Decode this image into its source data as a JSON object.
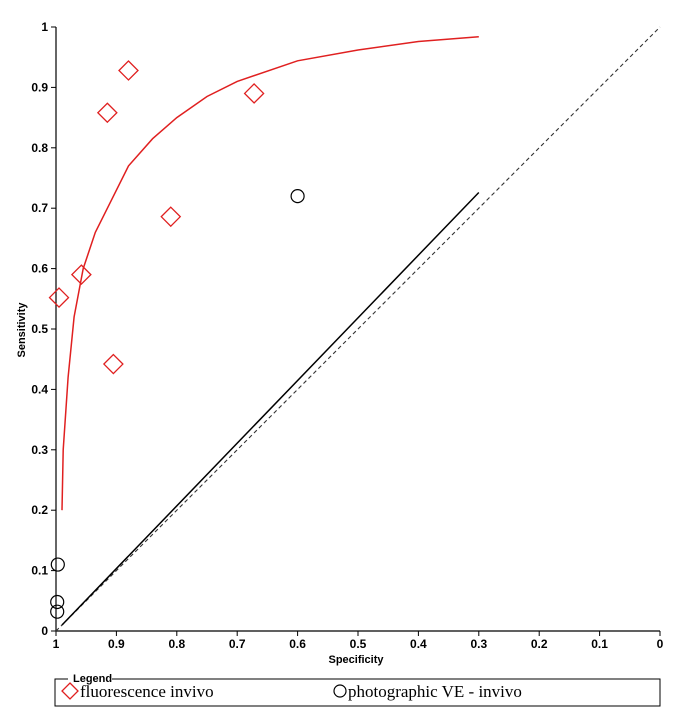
{
  "chart_data": {
    "type": "scatter",
    "xlabel": "Specificity",
    "ylabel": "Sensitivity",
    "xlim": [
      1,
      0
    ],
    "ylim": [
      0,
      1
    ],
    "x_reversed": true,
    "x_ticks": [
      {
        "value": 1,
        "label": "1"
      },
      {
        "value": 0.9,
        "label": "0.9"
      },
      {
        "value": 0.8,
        "label": "0.8"
      },
      {
        "value": 0.7,
        "label": "0.7"
      },
      {
        "value": 0.6,
        "label": "0.6"
      },
      {
        "value": 0.5,
        "label": "0.5"
      },
      {
        "value": 0.4,
        "label": "0.4"
      },
      {
        "value": 0.3,
        "label": "0.3"
      },
      {
        "value": 0.2,
        "label": "0.2"
      },
      {
        "value": 0.1,
        "label": "0.1"
      },
      {
        "value": 0,
        "label": "0"
      }
    ],
    "y_ticks": [
      {
        "value": 0,
        "label": "0"
      },
      {
        "value": 0.1,
        "label": "0.1"
      },
      {
        "value": 0.2,
        "label": "0.2"
      },
      {
        "value": 0.3,
        "label": "0.3"
      },
      {
        "value": 0.4,
        "label": "0.4"
      },
      {
        "value": 0.5,
        "label": "0.5"
      },
      {
        "value": 0.6,
        "label": "0.6"
      },
      {
        "value": 0.7,
        "label": "0.7"
      },
      {
        "value": 0.8,
        "label": "0.8"
      },
      {
        "value": 0.9,
        "label": "0.9"
      },
      {
        "value": 1,
        "label": "1"
      }
    ],
    "grid": false,
    "legend": {
      "title": "Legend",
      "placement": "bottom"
    },
    "series": [
      {
        "name": "fluorescence invivo",
        "marker": "diamond",
        "color": "#e02020",
        "points": [
          {
            "x": 0.88,
            "y": 0.928
          },
          {
            "x": 0.915,
            "y": 0.858
          },
          {
            "x": 0.672,
            "y": 0.89
          },
          {
            "x": 0.81,
            "y": 0.686
          },
          {
            "x": 0.958,
            "y": 0.59
          },
          {
            "x": 0.995,
            "y": 0.552
          },
          {
            "x": 0.905,
            "y": 0.442
          }
        ],
        "curve": [
          {
            "x": 0.99,
            "y": 0.2
          },
          {
            "x": 0.988,
            "y": 0.3
          },
          {
            "x": 0.98,
            "y": 0.42
          },
          {
            "x": 0.97,
            "y": 0.52
          },
          {
            "x": 0.955,
            "y": 0.6
          },
          {
            "x": 0.935,
            "y": 0.66
          },
          {
            "x": 0.91,
            "y": 0.71
          },
          {
            "x": 0.88,
            "y": 0.77
          },
          {
            "x": 0.84,
            "y": 0.815
          },
          {
            "x": 0.8,
            "y": 0.85
          },
          {
            "x": 0.75,
            "y": 0.885
          },
          {
            "x": 0.7,
            "y": 0.91
          },
          {
            "x": 0.6,
            "y": 0.944
          },
          {
            "x": 0.5,
            "y": 0.962
          },
          {
            "x": 0.4,
            "y": 0.976
          },
          {
            "x": 0.3,
            "y": 0.984
          }
        ]
      },
      {
        "name": "photographic VE - invivo",
        "marker": "circle",
        "color": "#000000",
        "points": [
          {
            "x": 0.6,
            "y": 0.72
          },
          {
            "x": 0.997,
            "y": 0.11
          },
          {
            "x": 0.998,
            "y": 0.048
          },
          {
            "x": 0.998,
            "y": 0.032
          }
        ],
        "curve": [
          {
            "x": 0.99,
            "y": 0.01
          },
          {
            "x": 0.3,
            "y": 0.726
          }
        ]
      }
    ],
    "reference_line": [
      {
        "x": 1,
        "y": 0
      },
      {
        "x": 0,
        "y": 1
      }
    ]
  }
}
